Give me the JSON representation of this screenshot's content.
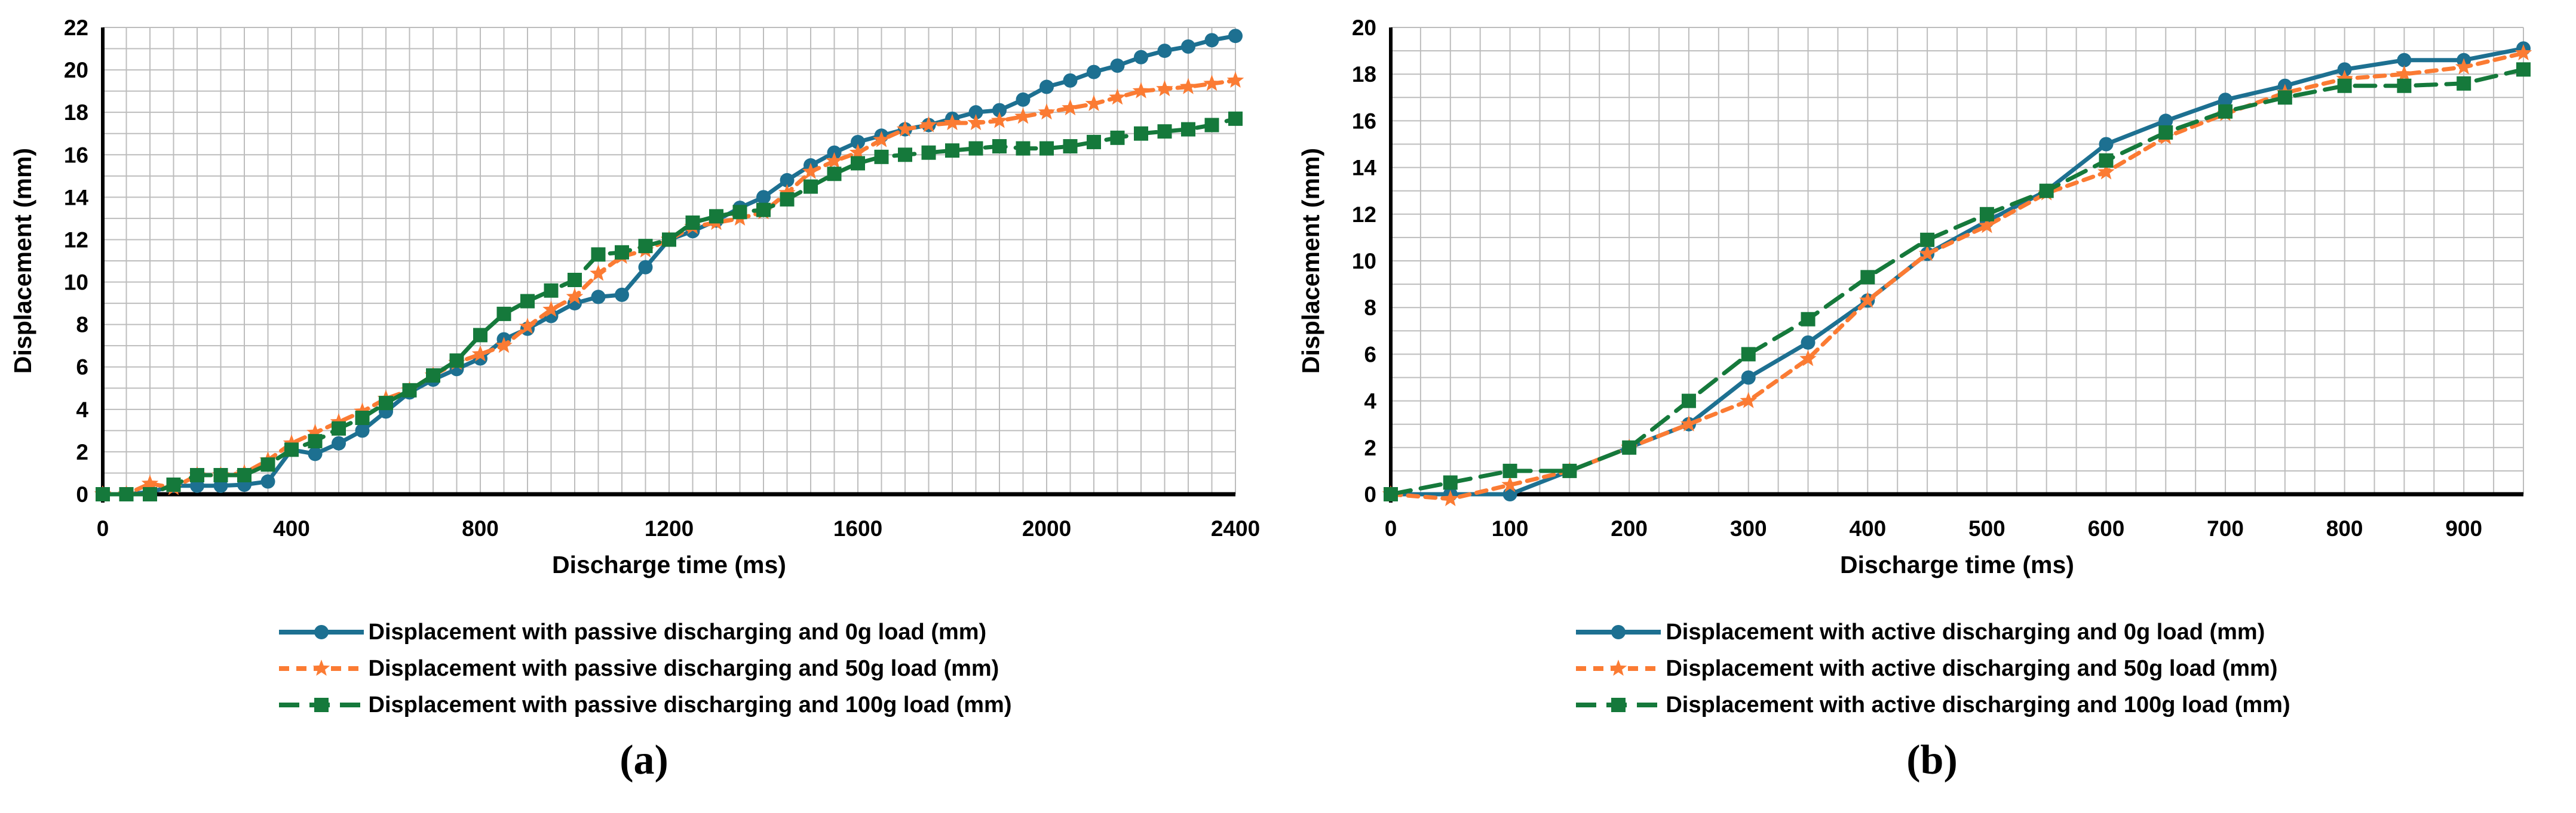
{
  "page": {
    "background": "#ffffff"
  },
  "chart_data": [
    {
      "id": "a",
      "type": "line",
      "caption": "(a)",
      "xlabel": "Discharge time (ms)",
      "ylabel": "Displacement (mm)",
      "xlim": [
        0,
        2400
      ],
      "ylim": [
        0,
        22
      ],
      "xticks": [
        0,
        400,
        800,
        1200,
        1600,
        2000,
        2400
      ],
      "yticks": [
        0,
        2,
        4,
        6,
        8,
        10,
        12,
        14,
        16,
        18,
        20,
        22
      ],
      "x_minor_grid": 50,
      "y_minor_grid": 1,
      "grid": true,
      "legend_position": "bottom",
      "grid_color": "#bdbdbd",
      "axis_color": "#000000",
      "x": [
        0,
        50,
        100,
        150,
        200,
        250,
        300,
        350,
        400,
        450,
        500,
        550,
        600,
        650,
        700,
        750,
        800,
        850,
        900,
        950,
        1000,
        1050,
        1100,
        1150,
        1200,
        1250,
        1300,
        1350,
        1400,
        1450,
        1500,
        1550,
        1600,
        1650,
        1700,
        1750,
        1800,
        1850,
        1900,
        1950,
        2000,
        2050,
        2100,
        2150,
        2200,
        2250,
        2300,
        2350,
        2400
      ],
      "series": [
        {
          "name": "Displacement with passive discharging and 0g load (mm)",
          "color": "#1d7091",
          "line_style": "solid",
          "marker": "circle",
          "values": [
            0,
            0,
            0.1,
            0.4,
            0.4,
            0.4,
            0.45,
            0.6,
            2.1,
            1.9,
            2.4,
            3.0,
            3.9,
            4.8,
            5.4,
            5.9,
            6.4,
            7.3,
            7.8,
            8.4,
            9.0,
            9.3,
            9.4,
            10.7,
            12.0,
            12.4,
            12.9,
            13.5,
            14.0,
            14.8,
            15.5,
            16.1,
            16.6,
            16.9,
            17.2,
            17.4,
            17.7,
            18.0,
            18.1,
            18.6,
            19.2,
            19.5,
            19.9,
            20.2,
            20.6,
            20.9,
            21.1,
            21.4,
            21.6
          ]
        },
        {
          "name": "Displacement with passive discharging and 50g load (mm)",
          "color": "#fb7b33",
          "line_style": "dashed",
          "marker": "star",
          "values": [
            0,
            0,
            0.5,
            0.3,
            0.9,
            0.9,
            1.0,
            1.6,
            2.4,
            2.9,
            3.4,
            3.9,
            4.5,
            4.9,
            5.6,
            6.2,
            6.6,
            7.0,
            7.9,
            8.7,
            9.3,
            10.4,
            11.2,
            11.5,
            12.0,
            12.6,
            12.8,
            13.0,
            13.3,
            14.2,
            15.2,
            15.7,
            16.1,
            16.7,
            17.2,
            17.4,
            17.5,
            17.5,
            17.6,
            17.8,
            18.0,
            18.2,
            18.4,
            18.7,
            19.0,
            19.1,
            19.2,
            19.35,
            19.5
          ]
        },
        {
          "name": "Displacement with passive discharging and 100g load (mm)",
          "color": "#15793b",
          "line_style": "long-dashed",
          "marker": "square",
          "values": [
            0,
            0,
            0,
            0.45,
            0.9,
            0.9,
            0.9,
            1.4,
            2.1,
            2.5,
            3.1,
            3.6,
            4.3,
            4.9,
            5.6,
            6.3,
            7.5,
            8.5,
            9.1,
            9.6,
            10.1,
            11.3,
            11.4,
            11.7,
            12.0,
            12.8,
            13.1,
            13.3,
            13.4,
            13.9,
            14.5,
            15.1,
            15.6,
            15.9,
            16.0,
            16.1,
            16.2,
            16.3,
            16.4,
            16.3,
            16.3,
            16.4,
            16.6,
            16.8,
            17.0,
            17.1,
            17.2,
            17.4,
            17.7
          ]
        }
      ]
    },
    {
      "id": "b",
      "type": "line",
      "caption": "(b)",
      "xlabel": "Discharge time (ms)",
      "ylabel": "Displacement (mm)",
      "xlim": [
        0,
        950
      ],
      "ylim": [
        0,
        20
      ],
      "xticks": [
        0,
        100,
        200,
        300,
        400,
        500,
        600,
        700,
        800,
        900
      ],
      "yticks": [
        0,
        2,
        4,
        6,
        8,
        10,
        12,
        14,
        16,
        18,
        20
      ],
      "x_minor_grid": 25,
      "y_minor_grid": 1,
      "grid": true,
      "legend_position": "bottom",
      "grid_color": "#bdbdbd",
      "axis_color": "#000000",
      "x": [
        0,
        50,
        100,
        150,
        200,
        250,
        300,
        350,
        400,
        450,
        500,
        550,
        600,
        650,
        700,
        750,
        800,
        850,
        900,
        950
      ],
      "series": [
        {
          "name": "Displacement with active discharging and 0g load (mm)",
          "color": "#1d7091",
          "line_style": "solid",
          "marker": "circle",
          "values": [
            0,
            0,
            0,
            1,
            2,
            3,
            5,
            6.5,
            8.3,
            10.3,
            11.7,
            13,
            15,
            16,
            16.9,
            17.5,
            18.2,
            18.6,
            18.6,
            19.1
          ]
        },
        {
          "name": "Displacement with active discharging and 50g load (mm)",
          "color": "#fb7b33",
          "line_style": "dashed",
          "marker": "star",
          "values": [
            0,
            -0.2,
            0.4,
            1,
            2,
            3,
            4,
            5.8,
            8.3,
            10.3,
            11.5,
            12.9,
            13.8,
            15.3,
            16.3,
            17.2,
            17.8,
            18.0,
            18.3,
            18.9
          ]
        },
        {
          "name": "Displacement with active discharging and 100g load (mm)",
          "color": "#15793b",
          "line_style": "long-dashed",
          "marker": "square",
          "values": [
            0,
            0.5,
            1,
            1,
            2,
            4,
            6,
            7.5,
            9.3,
            10.9,
            12,
            13,
            14.3,
            15.5,
            16.4,
            17.0,
            17.5,
            17.5,
            17.6,
            18.2
          ]
        }
      ]
    }
  ]
}
